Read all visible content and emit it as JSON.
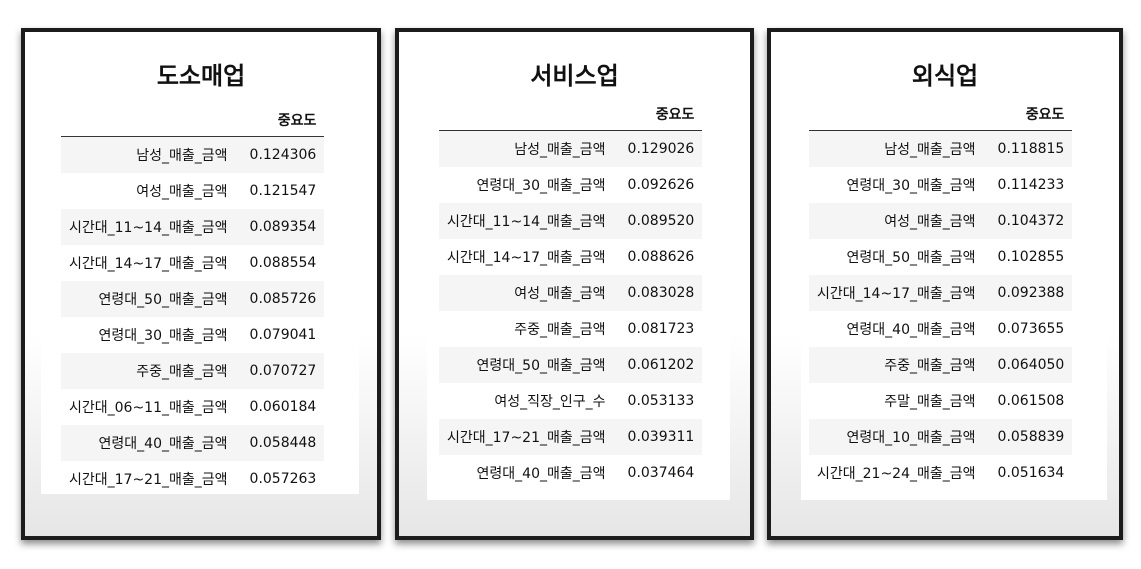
{
  "column_header": "중요도",
  "panels": [
    {
      "title": "도소매업",
      "rows": [
        {
          "label": "남성_매출_금액",
          "value": "0.124306"
        },
        {
          "label": "여성_매출_금액",
          "value": "0.121547"
        },
        {
          "label": "시간대_11~14_매출_금액",
          "value": "0.089354"
        },
        {
          "label": "시간대_14~17_매출_금액",
          "value": "0.088554"
        },
        {
          "label": "연령대_50_매출_금액",
          "value": "0.085726"
        },
        {
          "label": "연령대_30_매출_금액",
          "value": "0.079041"
        },
        {
          "label": "주중_매출_금액",
          "value": "0.070727"
        },
        {
          "label": "시간대_06~11_매출_금액",
          "value": "0.060184"
        },
        {
          "label": "연령대_40_매출_금액",
          "value": "0.058448"
        },
        {
          "label": "시간대_17~21_매출_금액",
          "value": "0.057263"
        }
      ]
    },
    {
      "title": "서비스업",
      "rows": [
        {
          "label": "남성_매출_금액",
          "value": "0.129026"
        },
        {
          "label": "연령대_30_매출_금액",
          "value": "0.092626"
        },
        {
          "label": "시간대_11~14_매출_금액",
          "value": "0.089520"
        },
        {
          "label": "시간대_14~17_매출_금액",
          "value": "0.088626"
        },
        {
          "label": "여성_매출_금액",
          "value": "0.083028"
        },
        {
          "label": "주중_매출_금액",
          "value": "0.081723"
        },
        {
          "label": "연령대_50_매출_금액",
          "value": "0.061202"
        },
        {
          "label": "여성_직장_인구_수",
          "value": "0.053133"
        },
        {
          "label": "시간대_17~21_매출_금액",
          "value": "0.039311"
        },
        {
          "label": "연령대_40_매출_금액",
          "value": "0.037464"
        }
      ]
    },
    {
      "title": "외식업",
      "rows": [
        {
          "label": "남성_매출_금액",
          "value": "0.118815"
        },
        {
          "label": "연령대_30_매출_금액",
          "value": "0.114233"
        },
        {
          "label": "여성_매출_금액",
          "value": "0.104372"
        },
        {
          "label": "연령대_50_매출_금액",
          "value": "0.102855"
        },
        {
          "label": "시간대_14~17_매출_금액",
          "value": "0.092388"
        },
        {
          "label": "연령대_40_매출_금액",
          "value": "0.073655"
        },
        {
          "label": "주중_매출_금액",
          "value": "0.064050"
        },
        {
          "label": "주말_매출_금액",
          "value": "0.061508"
        },
        {
          "label": "연령대_10_매출_금액",
          "value": "0.058839"
        },
        {
          "label": "시간대_21~24_매출_금액",
          "value": "0.051634"
        }
      ]
    }
  ]
}
